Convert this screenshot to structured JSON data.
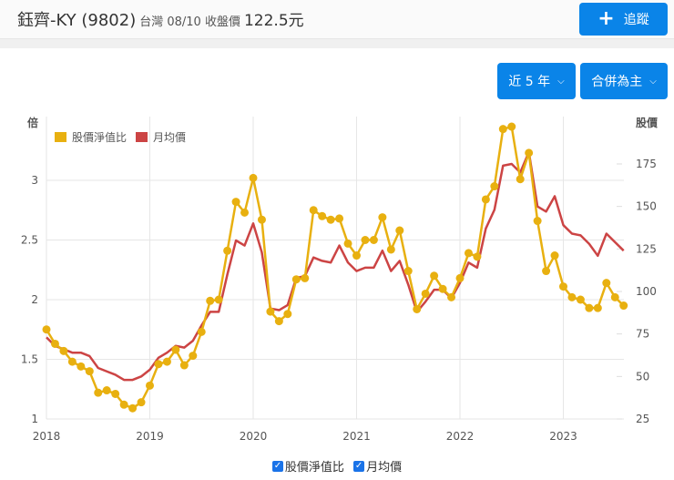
{
  "header": {
    "stock_name": "鈺齊-KY (9802)",
    "market_date": "台灣 08/10 收盤價",
    "close_price": "122.5元",
    "track_button": "追蹤",
    "track_icon": "plus-icon"
  },
  "controls": {
    "period_select": "近 5 年",
    "report_select": "合併為主"
  },
  "colors": {
    "pb_ratio": "#e8b010",
    "monthly_price": "#cc4444",
    "accent": "#0a84e8"
  },
  "chart_data": {
    "type": "line",
    "title": "",
    "ylabel_left": "倍",
    "ylabel_right": "股價",
    "ylim_left": [
      1,
      3.5
    ],
    "ylim_right": [
      25,
      190
    ],
    "yticks_left": [
      "1",
      "1.5",
      "2",
      "2.5",
      "3"
    ],
    "yticks_right": [
      "25",
      "50",
      "75",
      "100",
      "125",
      "150",
      "175"
    ],
    "xticks": [
      "2018",
      "2019",
      "2020",
      "2021",
      "2022",
      "2023"
    ],
    "grid": true,
    "legend_position": "top-left",
    "x": [
      "2018-01",
      "2018-02",
      "2018-03",
      "2018-04",
      "2018-05",
      "2018-06",
      "2018-07",
      "2018-08",
      "2018-09",
      "2018-10",
      "2018-11",
      "2018-12",
      "2019-01",
      "2019-02",
      "2019-03",
      "2019-04",
      "2019-05",
      "2019-06",
      "2019-07",
      "2019-08",
      "2019-09",
      "2019-10",
      "2019-11",
      "2019-12",
      "2020-01",
      "2020-02",
      "2020-03",
      "2020-04",
      "2020-05",
      "2020-06",
      "2020-07",
      "2020-08",
      "2020-09",
      "2020-10",
      "2020-11",
      "2020-12",
      "2021-01",
      "2021-02",
      "2021-03",
      "2021-04",
      "2021-05",
      "2021-06",
      "2021-07",
      "2021-08",
      "2021-09",
      "2021-10",
      "2021-11",
      "2021-12",
      "2022-01",
      "2022-02",
      "2022-03",
      "2022-04",
      "2022-05",
      "2022-06",
      "2022-07",
      "2022-08",
      "2022-09",
      "2022-10",
      "2022-11",
      "2022-12",
      "2023-01",
      "2023-02",
      "2023-03",
      "2023-04",
      "2023-05",
      "2023-06",
      "2023-07",
      "2023-08"
    ],
    "series": [
      {
        "name": "股價淨值比",
        "axis": "left",
        "values": [
          1.75,
          1.63,
          1.57,
          1.48,
          1.44,
          1.4,
          1.22,
          1.24,
          1.21,
          1.12,
          1.09,
          1.14,
          1.28,
          1.46,
          1.48,
          1.58,
          1.45,
          1.53,
          1.73,
          1.99,
          2.0,
          2.41,
          2.82,
          2.73,
          3.02,
          2.67,
          1.9,
          1.82,
          1.88,
          2.17,
          2.18,
          2.75,
          2.7,
          2.67,
          2.68,
          2.47,
          2.37,
          2.5,
          2.5,
          2.69,
          2.42,
          2.58,
          2.24,
          1.92,
          2.05,
          2.2,
          2.09,
          2.02,
          2.18,
          2.39,
          2.36,
          2.84,
          2.95,
          3.43,
          3.45,
          3.01,
          3.23,
          2.66,
          2.24,
          2.37,
          2.11,
          2.02,
          2.0,
          1.93,
          1.93,
          2.14,
          2.02,
          1.95
        ]
      },
      {
        "name": "月均價",
        "axis": "right",
        "values": [
          73,
          68,
          66,
          64,
          64,
          62,
          55,
          53,
          51,
          48,
          48,
          50,
          54,
          61,
          64,
          68,
          67,
          71,
          80,
          88,
          88,
          110,
          130,
          127,
          140,
          123,
          90,
          89,
          92,
          108,
          109,
          120,
          118,
          117,
          127,
          117,
          112,
          114,
          114,
          124,
          112,
          118,
          104,
          88,
          94,
          101,
          101,
          96,
          105,
          117,
          114,
          137,
          148,
          174,
          175,
          170,
          182,
          150,
          147,
          156,
          139,
          134,
          133,
          128,
          121,
          134,
          129,
          124
        ]
      }
    ]
  },
  "legend": {
    "top_items": [
      "股價淨值比",
      "月均價"
    ],
    "bottom_items": [
      "股價淨值比",
      "月均價"
    ]
  }
}
